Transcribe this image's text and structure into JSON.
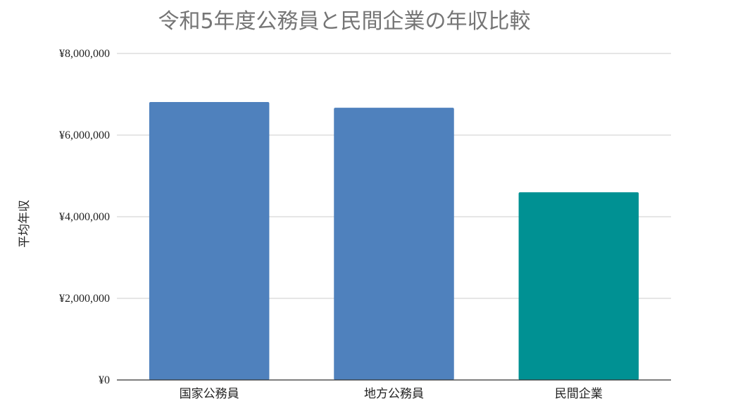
{
  "chart_data": {
    "type": "bar",
    "title": "令和5年度公務員と民間企業の年収比較",
    "xlabel": "",
    "ylabel": "平均年収",
    "categories": [
      "国家公務員",
      "地方公務員",
      "民間企業"
    ],
    "values": [
      6810000,
      6670000,
      4600000
    ],
    "bar_colors": [
      "#4f81bd",
      "#4f81bd",
      "#009193"
    ],
    "ylim": [
      0,
      8000000
    ],
    "y_ticks": [
      0,
      2000000,
      4000000,
      6000000,
      8000000
    ],
    "y_tick_labels": [
      "¥0",
      "¥2,000,000",
      "¥4,000,000",
      "¥6,000,000",
      "¥8,000,000"
    ],
    "grid": true,
    "legend": "none"
  }
}
